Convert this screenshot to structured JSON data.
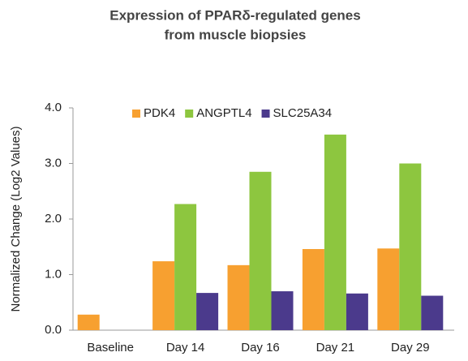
{
  "chart_data": {
    "type": "bar",
    "title": [
      "Expression of PPARδ-regulated genes",
      "from muscle biopsies"
    ],
    "y_label": "Normalized Change (Log2 Values)",
    "categories": [
      "Baseline",
      "Day 14",
      "Day 16",
      "Day 21",
      "Day 29"
    ],
    "series": [
      {
        "name": "PDK4",
        "color": "#f7a030",
        "values": [
          0.28,
          1.24,
          1.17,
          1.46,
          1.47
        ]
      },
      {
        "name": "ANGPTL4",
        "color": "#8dc63f",
        "values": [
          null,
          2.27,
          2.85,
          3.52,
          3.0
        ]
      },
      {
        "name": "SLC25A34",
        "color": "#4b3a8c",
        "values": [
          null,
          0.67,
          0.7,
          0.66,
          0.62
        ]
      }
    ],
    "ylim": [
      0,
      4
    ],
    "yticks": [
      {
        "value": 0,
        "label": "0.0"
      },
      {
        "value": 1,
        "label": "1.0"
      },
      {
        "value": 2,
        "label": "2.0"
      },
      {
        "value": 3,
        "label": "3.0"
      },
      {
        "value": 4,
        "label": "4.0"
      }
    ],
    "grid": false,
    "legend": "top"
  }
}
